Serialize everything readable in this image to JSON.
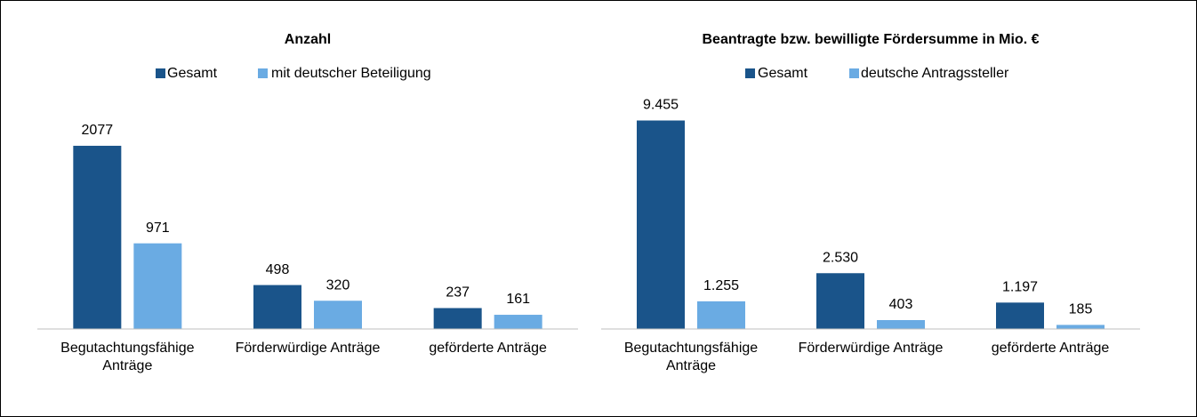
{
  "chart_data": [
    {
      "type": "bar",
      "title": "Anzahl",
      "categories": [
        "Begutachtungsfähige Anträge",
        "Förderwürdige Anträge",
        "geförderte Anträge"
      ],
      "series": [
        {
          "name": "Gesamt",
          "color": "#1a548a",
          "values": [
            2077,
            498,
            237
          ]
        },
        {
          "name": "mit deutscher Beteiligung",
          "color": "#6aabe3",
          "values": [
            971,
            320,
            161
          ]
        }
      ],
      "ylim": [
        0,
        2500
      ]
    },
    {
      "type": "bar",
      "title": "Beantragte bzw. bewilligte  Fördersumme in Mio. €",
      "categories": [
        "Begutachtungsfähige Anträge",
        "Förderwürdige Anträge",
        "geförderte Anträge"
      ],
      "series": [
        {
          "name": "Gesamt",
          "color": "#1a548a",
          "values": [
            9455,
            2530,
            1197
          ],
          "value_labels": [
            "9.455",
            "2.530",
            "1.197"
          ]
        },
        {
          "name": "deutsche Antragssteller",
          "color": "#6aabe3",
          "values": [
            1255,
            403,
            185
          ],
          "value_labels": [
            "1.255",
            "403",
            "185"
          ]
        }
      ],
      "ylim": [
        0,
        10000
      ]
    }
  ]
}
